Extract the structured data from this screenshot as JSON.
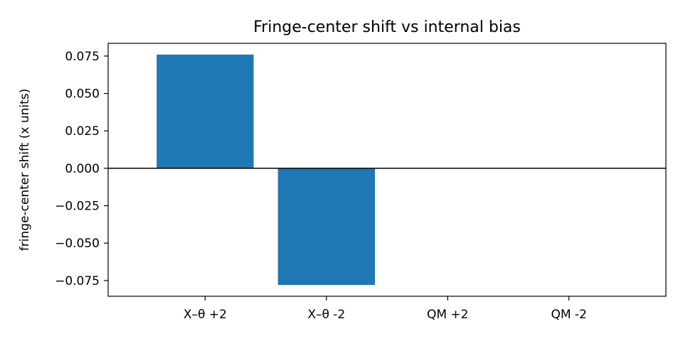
{
  "chart_data": {
    "type": "bar",
    "title": "Fringe-center shift vs internal bias",
    "xlabel": "",
    "ylabel": "fringe-center shift (x units)",
    "categories": [
      "X–θ +2",
      "X–θ -2",
      "QM +2",
      "QM -2"
    ],
    "values": [
      0.076,
      -0.078,
      0.0,
      0.0
    ],
    "ylim": [
      -0.0855,
      0.0835
    ],
    "yticks": [
      -0.075,
      -0.05,
      -0.025,
      0.0,
      0.025,
      0.05,
      0.075
    ],
    "ytick_labels": [
      "−0.075",
      "−0.050",
      "−0.025",
      "0.000",
      "0.025",
      "0.050",
      "0.075"
    ],
    "bar_color": "#1f77b4",
    "zero_line": true,
    "grid": false,
    "legend": "none"
  }
}
